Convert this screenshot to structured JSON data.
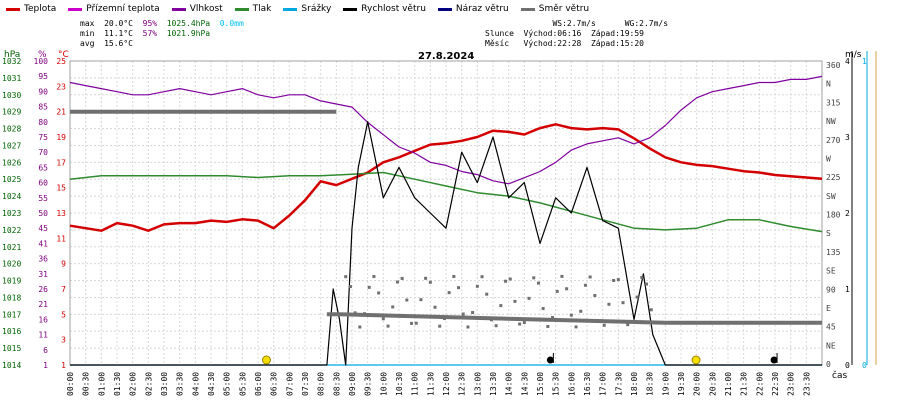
{
  "legend": [
    {
      "label": "Teplota",
      "color": "#d40000"
    },
    {
      "label": "Přízemní teplota",
      "color": "#cc00cc"
    },
    {
      "label": "Vlhkost",
      "color": "#8000a0"
    },
    {
      "label": "Tlak",
      "color": "#2e8b2e"
    },
    {
      "label": "Srážky",
      "color": "#00a8e0"
    },
    {
      "label": "Rychlost větru",
      "color": "#000000"
    },
    {
      "label": "Náraz větru",
      "color": "#000080"
    },
    {
      "label": "Směr větru",
      "color": "#707070"
    }
  ],
  "stats": {
    "max_label": "max",
    "max_temp": "20.0°C",
    "max_hum": "95%",
    "max_pres": "1025.4hPa",
    "max_rain": "0.0mm",
    "min_label": "min",
    "min_temp": "11.1°C",
    "min_hum": "57%",
    "min_pres": "1021.9hPa",
    "avg_label": "avg",
    "avg_temp": "15.6°C"
  },
  "astro": {
    "ws": "WS:2.7m/s",
    "wg": "WG:2.7m/s",
    "sun_label": "Slunce",
    "sun_rise": "Východ:06:16",
    "sun_set": "Západ:19:59",
    "moon_label": "Měsíc",
    "moon_rise": "Východ:22:28",
    "moon_set": "Západ:15:20"
  },
  "chart_data": {
    "type": "line",
    "title": "27.8.2024",
    "xlabel": "čas",
    "x_ticks": [
      "00:00",
      "00:30",
      "01:00",
      "01:30",
      "02:00",
      "02:30",
      "03:00",
      "03:30",
      "04:00",
      "04:30",
      "05:00",
      "05:30",
      "06:00",
      "06:30",
      "07:00",
      "07:30",
      "08:00",
      "08:30",
      "09:00",
      "09:30",
      "10:00",
      "10:30",
      "11:00",
      "11:30",
      "12:00",
      "12:30",
      "13:00",
      "13:30",
      "14:00",
      "14:30",
      "15:00",
      "15:30",
      "16:00",
      "16:30",
      "17:00",
      "17:30",
      "18:00",
      "18:30",
      "19:00",
      "19:30",
      "20:00",
      "20:30",
      "21:00",
      "21:30",
      "22:00",
      "22:30",
      "23:00",
      "23:30"
    ],
    "axes": {
      "pressure": {
        "unit": "hPa",
        "ticks": [
          "1032",
          "1031",
          "1030",
          "1029",
          "1028",
          "1027",
          "1026",
          "1025",
          "1024",
          "1023",
          "1022",
          "1021",
          "1020",
          "1019",
          "1018",
          "1017",
          "1016",
          "1015",
          "1014"
        ],
        "range": [
          1014,
          1032
        ]
      },
      "humidity": {
        "unit": "%",
        "ticks": [
          "100",
          "95",
          "90",
          "85",
          "80",
          "75",
          "70",
          "65",
          "60",
          "55",
          "50",
          "45",
          "41",
          "36",
          "31",
          "26",
          "21",
          "16",
          "11",
          "6",
          "1"
        ],
        "range": [
          1,
          100
        ]
      },
      "temperature": {
        "unit": "°C",
        "ticks": [
          "25",
          "23",
          "21",
          "19",
          "17",
          "15",
          "13",
          "11",
          "9",
          "7",
          "5",
          "3",
          "1"
        ],
        "range": [
          1,
          25
        ]
      },
      "wind_dir": {
        "ticks": [
          "360",
          "N",
          "315",
          "NW",
          "270",
          "W",
          "225",
          "SW",
          "180",
          "S",
          "135",
          "SE",
          "90",
          "E",
          "45",
          "NE",
          "0"
        ],
        "range": [
          0,
          360
        ]
      },
      "wind_speed": {
        "unit": "m/s",
        "ticks": [
          "4",
          "3",
          "2",
          "1",
          "0"
        ],
        "range": [
          0,
          4
        ]
      },
      "rain": {
        "unit": "l",
        "ticks": [
          "1",
          "0"
        ],
        "range": [
          0,
          1
        ]
      }
    },
    "series": [
      {
        "name": "Teplota",
        "axis": "temperature",
        "color": "#d40000",
        "x": [
          0,
          0.5,
          1,
          1.5,
          2,
          2.5,
          3,
          3.5,
          4,
          4.5,
          5,
          5.5,
          6,
          6.5,
          7,
          7.5,
          8,
          8.5,
          9,
          9.5,
          10,
          10.5,
          11,
          11.5,
          12,
          12.5,
          13,
          13.5,
          14,
          14.5,
          15,
          15.5,
          16,
          16.5,
          17,
          17.5,
          18,
          18.5,
          19,
          19.5,
          20,
          20.5,
          21,
          21.5,
          22,
          22.5,
          23,
          23.5,
          24
        ],
        "y": [
          12.0,
          11.8,
          11.6,
          12.2,
          12.0,
          11.6,
          12.1,
          12.2,
          12.2,
          12.4,
          12.3,
          12.5,
          12.4,
          11.8,
          12.8,
          14.0,
          15.5,
          15.2,
          15.7,
          16.2,
          17.0,
          17.4,
          17.9,
          18.4,
          18.5,
          18.7,
          19.0,
          19.5,
          19.4,
          19.2,
          19.7,
          20.0,
          19.7,
          19.6,
          19.7,
          19.6,
          18.9,
          18.1,
          17.4,
          17.0,
          16.8,
          16.7,
          16.5,
          16.3,
          16.2,
          16.0,
          15.9,
          15.8,
          15.7
        ]
      },
      {
        "name": "Vlhkost",
        "axis": "humidity",
        "color": "#8000a0",
        "x": [
          0,
          0.5,
          1,
          1.5,
          2,
          2.5,
          3,
          3.5,
          4,
          4.5,
          5,
          5.5,
          6,
          6.5,
          7,
          7.5,
          8,
          8.5,
          9,
          9.5,
          10,
          10.5,
          11,
          11.5,
          12,
          12.5,
          13,
          13.5,
          14,
          14.5,
          15,
          15.5,
          16,
          16.5,
          17,
          17.5,
          18,
          18.5,
          19,
          19.5,
          20,
          20.5,
          21,
          21.5,
          22,
          22.5,
          23,
          23.5,
          24
        ],
        "y": [
          93,
          92,
          91,
          90,
          89,
          89,
          90,
          91,
          90,
          89,
          90,
          91,
          89,
          88,
          89,
          89,
          87,
          86,
          85,
          80,
          76,
          72,
          70,
          67,
          66,
          64,
          63,
          61,
          60,
          62,
          64,
          67,
          71,
          73,
          74,
          75,
          73,
          75,
          79,
          84,
          88,
          90,
          91,
          92,
          93,
          93,
          94,
          94,
          95
        ]
      },
      {
        "name": "Tlak",
        "axis": "pressure",
        "color": "#2e8b2e",
        "x": [
          0,
          1,
          2,
          3,
          4,
          5,
          6,
          7,
          8,
          9,
          10,
          11,
          12,
          13,
          14,
          15,
          16,
          17,
          18,
          19,
          20,
          21,
          22,
          23,
          24
        ],
        "y": [
          1025.0,
          1025.2,
          1025.2,
          1025.2,
          1025.2,
          1025.2,
          1025.1,
          1025.2,
          1025.2,
          1025.3,
          1025.4,
          1025.0,
          1024.6,
          1024.2,
          1024.0,
          1023.6,
          1023.1,
          1022.6,
          1022.1,
          1022.0,
          1022.1,
          1022.6,
          1022.6,
          1022.2,
          1021.9
        ]
      },
      {
        "name": "Srážky",
        "axis": "rain",
        "color": "#00a8e0",
        "x": [
          0,
          24
        ],
        "y": [
          0,
          0
        ]
      },
      {
        "name": "Rychlost větru",
        "axis": "wind_speed",
        "color": "#000000",
        "x": [
          0,
          8.2,
          8.4,
          8.6,
          8.8,
          9.0,
          9.2,
          9.5,
          10,
          10.5,
          11,
          11.5,
          12,
          12.5,
          13,
          13.5,
          14,
          14.5,
          15,
          15.5,
          16,
          16.5,
          17,
          17.5,
          18,
          18.3,
          18.6,
          19.0,
          19.5,
          24
        ],
        "y": [
          0,
          0,
          1,
          0.6,
          0,
          1.8,
          2.6,
          3.2,
          2.2,
          2.6,
          2.2,
          2.0,
          1.8,
          2.8,
          2.4,
          3.0,
          2.2,
          2.4,
          1.6,
          2.2,
          2.0,
          2.6,
          1.9,
          1.8,
          0.6,
          1.2,
          0.4,
          0,
          0,
          0
        ]
      },
      {
        "name": "Směr větru",
        "axis": "wind_dir",
        "color": "#707070",
        "x": [
          0,
          0.5,
          8.5
        ],
        "y": [
          300,
          300,
          300
        ],
        "x2": [
          8.2,
          8.4,
          8.6,
          19,
          24
        ],
        "y2": [
          60,
          60,
          60,
          50,
          50
        ]
      }
    ],
    "markers": [
      {
        "name": "sunrise",
        "x": 6.27,
        "shape": "yellow-circle"
      },
      {
        "name": "moonset",
        "x": 15.33,
        "shape": "black-circle"
      },
      {
        "name": "sunset",
        "x": 19.98,
        "shape": "yellow-circle"
      },
      {
        "name": "moonrise",
        "x": 22.47,
        "shape": "black-circle"
      }
    ],
    "grid": true
  }
}
